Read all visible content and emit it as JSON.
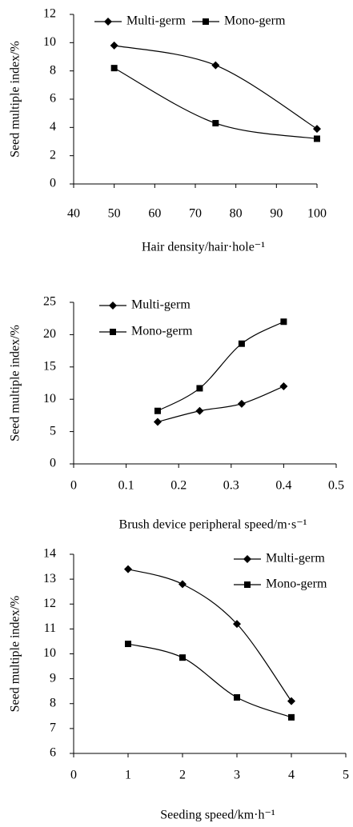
{
  "chart_data": [
    {
      "type": "line",
      "x_label": "Hair density/hair·hole⁻¹",
      "y_label": "Seed multiple index/%",
      "x": [
        50,
        75,
        100
      ],
      "series": [
        {
          "name": "Multi-germ",
          "color": "#000000",
          "marker": "diamond",
          "values": [
            9.8,
            8.4,
            3.9
          ]
        },
        {
          "name": "Mono-germ",
          "color": "#000000",
          "marker": "square",
          "values": [
            8.2,
            4.3,
            3.2
          ]
        }
      ],
      "xlim": [
        40,
        100
      ],
      "xticks": [
        40,
        50,
        60,
        70,
        80,
        90,
        100
      ],
      "ylim": [
        0,
        12
      ],
      "yticks": [
        0,
        2,
        4,
        6,
        8,
        10,
        12
      ],
      "grid": false,
      "legend": "top"
    },
    {
      "type": "line",
      "x_label": "Brush device peripheral speed/m·s⁻¹",
      "y_label": "Seed multiple index/%",
      "x": [
        0.16,
        0.24,
        0.32,
        0.4
      ],
      "series": [
        {
          "name": "Multi-germ",
          "color": "#000000",
          "marker": "diamond",
          "values": [
            6.5,
            8.2,
            9.3,
            12.0
          ]
        },
        {
          "name": "Mono-germ",
          "color": "#000000",
          "marker": "square",
          "values": [
            8.2,
            11.7,
            18.6,
            22.0
          ]
        }
      ],
      "xlim": [
        0,
        0.5
      ],
      "xticks": [
        0,
        0.1,
        0.2,
        0.3,
        0.4,
        0.5
      ],
      "ylim": [
        0,
        25
      ],
      "yticks": [
        0,
        5,
        10,
        15,
        20,
        25
      ],
      "grid": false,
      "legend": "upper left"
    },
    {
      "type": "line",
      "x_label": "Seeding speed/km·h⁻¹",
      "y_label": "Seed multiple index/%",
      "x": [
        1,
        2,
        3,
        4
      ],
      "series": [
        {
          "name": "Multi-germ",
          "color": "#000000",
          "marker": "diamond",
          "values": [
            13.4,
            12.8,
            11.2,
            8.1
          ]
        },
        {
          "name": "Mono-germ",
          "color": "#000000",
          "marker": "square",
          "values": [
            10.4,
            9.85,
            8.25,
            7.45
          ]
        }
      ],
      "xlim": [
        0,
        5
      ],
      "xticks": [
        0,
        1,
        2,
        3,
        4,
        5
      ],
      "ylim": [
        6,
        14
      ],
      "yticks": [
        6,
        7,
        8,
        9,
        10,
        11,
        12,
        13,
        14
      ],
      "grid": false,
      "legend": "upper right"
    }
  ]
}
